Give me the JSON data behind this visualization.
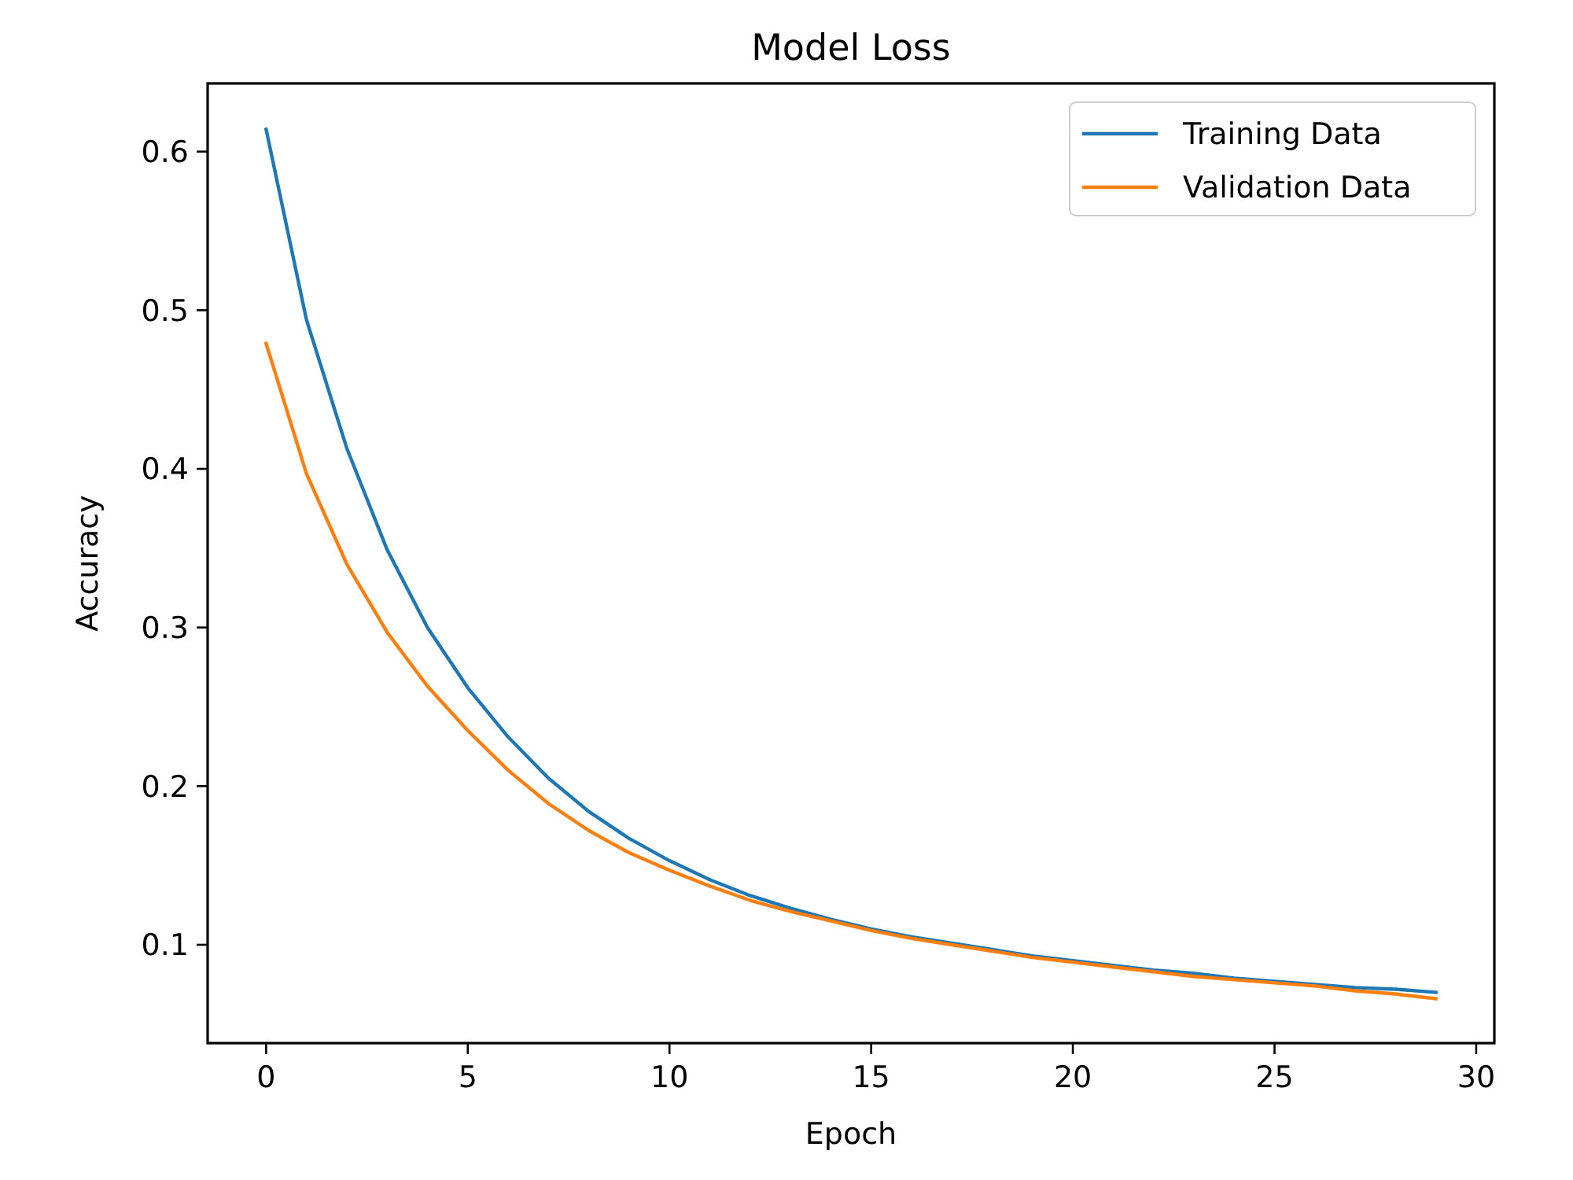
{
  "chart_data": {
    "type": "line",
    "title": "Model Loss",
    "xlabel": "Epoch",
    "ylabel": "Accuracy",
    "x": [
      0,
      1,
      2,
      3,
      4,
      5,
      6,
      7,
      8,
      9,
      10,
      11,
      12,
      13,
      14,
      15,
      16,
      17,
      18,
      19,
      20,
      21,
      22,
      23,
      24,
      25,
      26,
      27,
      28,
      29
    ],
    "series": [
      {
        "name": "Training Data",
        "color": "#1f77b4",
        "values": [
          0.614,
          0.494,
          0.413,
          0.349,
          0.3,
          0.262,
          0.231,
          0.205,
          0.184,
          0.167,
          0.153,
          0.141,
          0.131,
          0.123,
          0.116,
          0.11,
          0.105,
          0.101,
          0.097,
          0.093,
          0.09,
          0.087,
          0.084,
          0.082,
          0.079,
          0.077,
          0.075,
          0.073,
          0.072,
          0.07
        ]
      },
      {
        "name": "Validation Data",
        "color": "#ff7f0e",
        "values": [
          0.479,
          0.397,
          0.34,
          0.297,
          0.263,
          0.235,
          0.21,
          0.189,
          0.172,
          0.158,
          0.147,
          0.137,
          0.128,
          0.121,
          0.115,
          0.109,
          0.104,
          0.1,
          0.096,
          0.092,
          0.089,
          0.086,
          0.083,
          0.08,
          0.078,
          0.076,
          0.074,
          0.071,
          0.069,
          0.066
        ]
      }
    ],
    "xlim": [
      -1.45,
      30.45
    ],
    "xticks": [
      0,
      5,
      10,
      15,
      20,
      25,
      30
    ],
    "ylim": [
      0.038,
      0.643
    ],
    "yticks": [
      0.1,
      0.2,
      0.3,
      0.4,
      0.5,
      0.6
    ],
    "grid": false,
    "legend": "top right",
    "marker": "none",
    "line_style": "solid"
  }
}
